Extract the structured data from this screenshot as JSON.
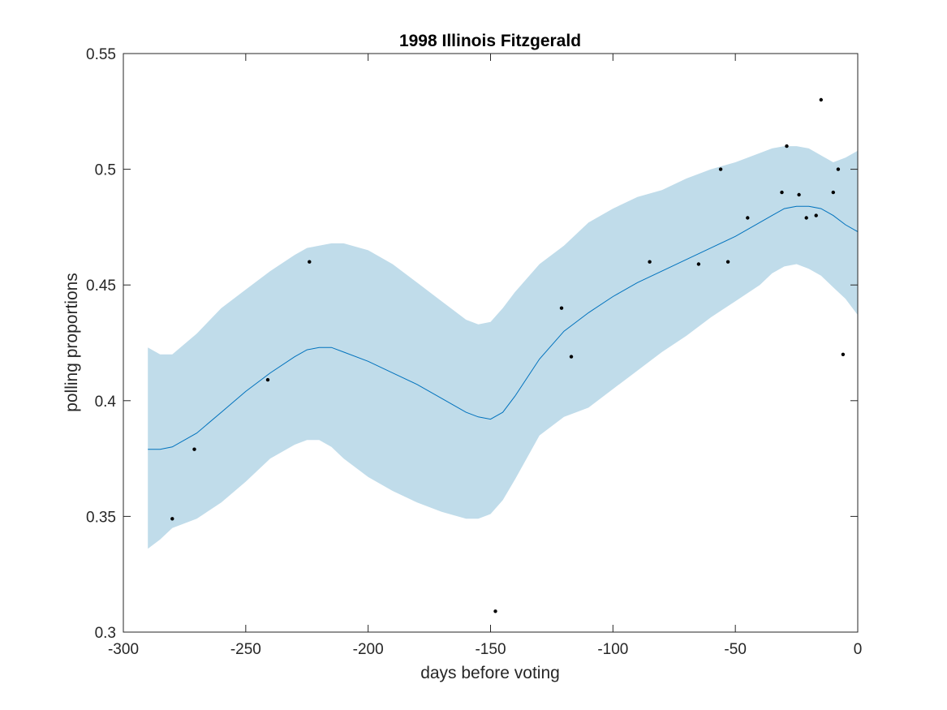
{
  "chart_data": {
    "type": "scatter",
    "title": "1998 Illinois Fitzgerald",
    "xlabel": "days before voting",
    "ylabel": "polling proportions",
    "xlim": [
      -300,
      0
    ],
    "ylim": [
      0.3,
      0.55
    ],
    "xticks": [
      -300,
      -250,
      -200,
      -150,
      -100,
      -50,
      0
    ],
    "xtick_labels": [
      "-300",
      "-250",
      "-200",
      "-150",
      "-100",
      "-50",
      "0"
    ],
    "yticks": [
      0.3,
      0.35,
      0.4,
      0.45,
      0.5,
      0.55
    ],
    "ytick_labels": [
      "0.3",
      "0.35",
      "0.4",
      "0.45",
      "0.5",
      "0.55"
    ],
    "grid": false,
    "colors": {
      "band": "#c0dcea",
      "line": "#0072bd",
      "points": "#000000",
      "axes": "#262626"
    },
    "series": [
      {
        "type": "scatter",
        "x": [
          -280,
          -271,
          -241,
          -224,
          -148,
          -121,
          -117,
          -85,
          -65,
          -53,
          -56,
          -45,
          -31,
          -29,
          -24,
          -21,
          -17,
          -15,
          -10,
          -8,
          -6
        ],
        "y": [
          0.349,
          0.379,
          0.409,
          0.46,
          0.309,
          0.44,
          0.419,
          0.46,
          0.459,
          0.46,
          0.5,
          0.479,
          0.49,
          0.51,
          0.489,
          0.479,
          0.48,
          0.53,
          0.49,
          0.5,
          0.42
        ]
      },
      {
        "type": "line",
        "x": [
          -290,
          -285,
          -280,
          -270,
          -260,
          -250,
          -240,
          -230,
          -225,
          -220,
          -215,
          -210,
          -200,
          -190,
          -180,
          -170,
          -160,
          -155,
          -150,
          -145,
          -140,
          -130,
          -120,
          -110,
          -100,
          -90,
          -80,
          -70,
          -60,
          -50,
          -40,
          -35,
          -30,
          -25,
          -20,
          -15,
          -10,
          -5,
          0
        ],
        "y": [
          0.379,
          0.379,
          0.38,
          0.386,
          0.395,
          0.404,
          0.412,
          0.419,
          0.422,
          0.423,
          0.423,
          0.421,
          0.417,
          0.412,
          0.407,
          0.401,
          0.395,
          0.393,
          0.392,
          0.395,
          0.402,
          0.418,
          0.43,
          0.438,
          0.445,
          0.451,
          0.456,
          0.461,
          0.466,
          0.471,
          0.477,
          0.48,
          0.483,
          0.484,
          0.484,
          0.483,
          0.48,
          0.476,
          0.473
        ]
      },
      {
        "type": "area",
        "x": [
          -290,
          -285,
          -280,
          -270,
          -260,
          -250,
          -240,
          -230,
          -225,
          -220,
          -215,
          -210,
          -200,
          -190,
          -180,
          -170,
          -160,
          -155,
          -150,
          -145,
          -140,
          -130,
          -120,
          -110,
          -100,
          -90,
          -80,
          -70,
          -60,
          -50,
          -40,
          -35,
          -30,
          -25,
          -20,
          -15,
          -10,
          -5,
          0
        ],
        "upper": [
          0.423,
          0.42,
          0.42,
          0.429,
          0.44,
          0.448,
          0.456,
          0.463,
          0.466,
          0.467,
          0.468,
          0.468,
          0.465,
          0.459,
          0.451,
          0.443,
          0.435,
          0.433,
          0.434,
          0.44,
          0.447,
          0.459,
          0.467,
          0.477,
          0.483,
          0.488,
          0.491,
          0.496,
          0.5,
          0.503,
          0.507,
          0.509,
          0.51,
          0.51,
          0.509,
          0.506,
          0.503,
          0.505,
          0.508
        ],
        "lower": [
          0.336,
          0.34,
          0.345,
          0.349,
          0.356,
          0.365,
          0.375,
          0.381,
          0.383,
          0.383,
          0.38,
          0.375,
          0.367,
          0.361,
          0.356,
          0.352,
          0.349,
          0.349,
          0.351,
          0.357,
          0.366,
          0.385,
          0.393,
          0.397,
          0.405,
          0.413,
          0.421,
          0.428,
          0.436,
          0.443,
          0.45,
          0.455,
          0.458,
          0.459,
          0.457,
          0.454,
          0.449,
          0.444,
          0.437
        ]
      }
    ]
  }
}
